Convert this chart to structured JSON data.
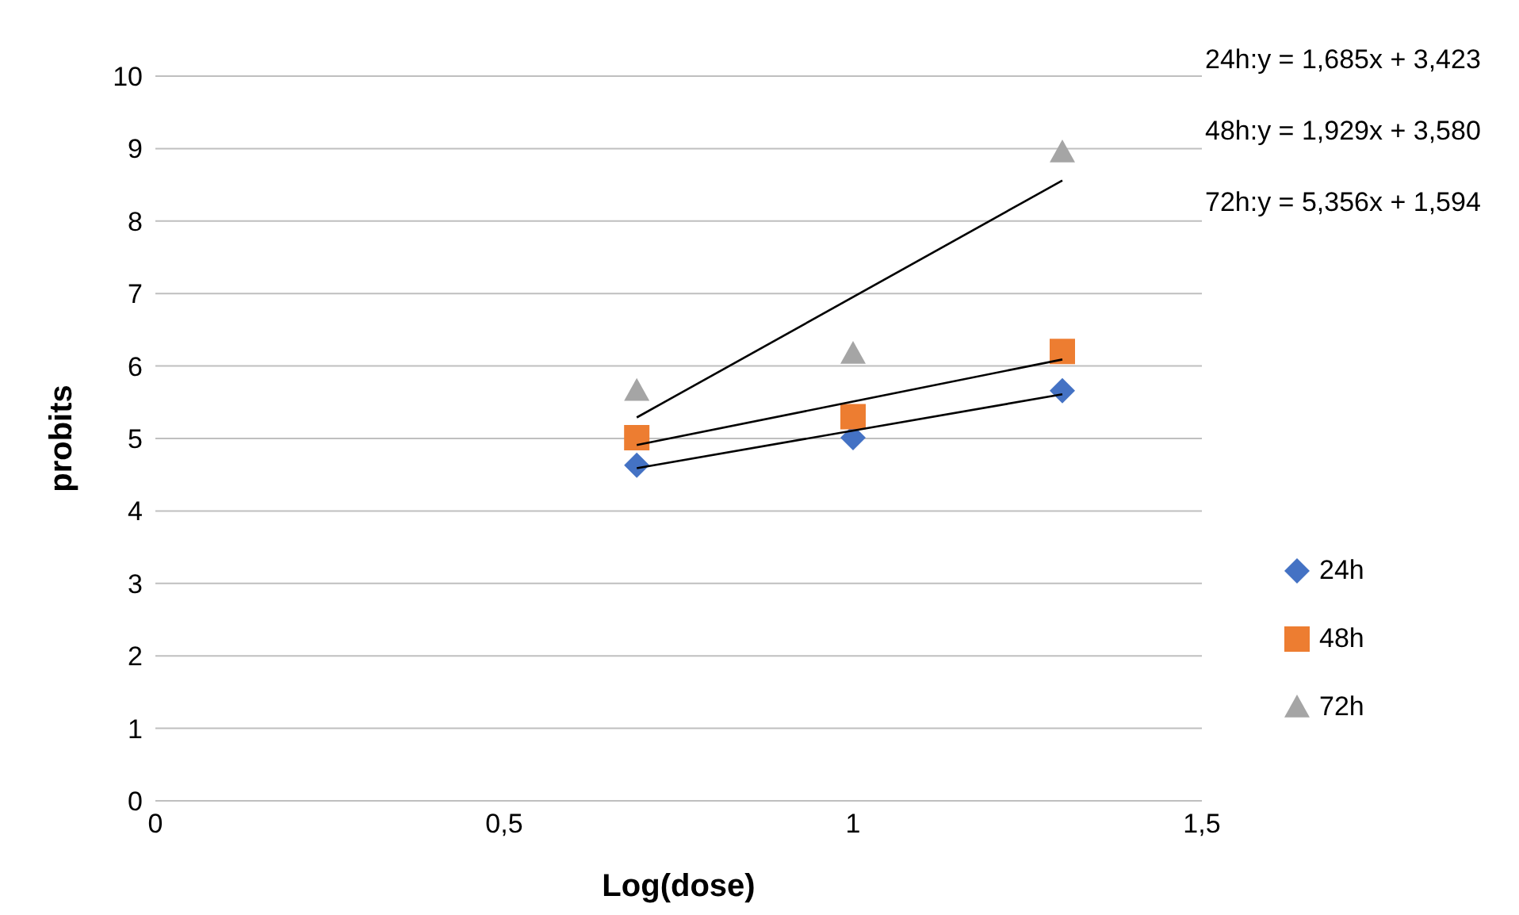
{
  "chart_data": {
    "type": "scatter",
    "xlabel": "Log(dose)",
    "ylabel": "probits",
    "xlim": [
      0,
      1.5
    ],
    "xticks": [
      0,
      {
        "value": 0.5,
        "label": "0,5"
      },
      1,
      {
        "value": 1.5,
        "label": "1,5"
      }
    ],
    "ylim": [
      0,
      10
    ],
    "yticks": [
      0,
      1,
      2,
      3,
      4,
      5,
      6,
      7,
      8,
      9,
      10
    ],
    "grid": "y",
    "legend": "right",
    "series": [
      {
        "name": "24h",
        "color": "#4472c4",
        "marker": "diamond",
        "x": [
          0.69,
          1,
          1.3
        ],
        "values": [
          4.63,
          5.01,
          5.66
        ]
      },
      {
        "name": "48h",
        "color": "#ed7d31",
        "marker": "square",
        "x": [
          0.69,
          1,
          1.3
        ],
        "values": [
          5.01,
          5.3,
          6.2
        ]
      },
      {
        "name": "72h",
        "color": "#a5a5a5",
        "marker": "triangle",
        "x": [
          0.69,
          1,
          1.3
        ],
        "values": [
          5.66,
          6.17,
          8.95
        ]
      },
      {
        "type": "line",
        "color": "#000000",
        "marker": "none",
        "x": [
          0.69,
          1.3
        ],
        "values": [
          4.59,
          5.61
        ]
      },
      {
        "type": "line",
        "color": "#000000",
        "marker": "none",
        "x": [
          0.69,
          1.3
        ],
        "values": [
          4.91,
          6.09
        ]
      },
      {
        "type": "line",
        "color": "#000000",
        "marker": "none",
        "x": [
          0.69,
          1.3
        ],
        "values": [
          5.29,
          8.56
        ]
      }
    ],
    "annotations": [
      "24h:y = 1,685x + 3,423",
      "48h:y = 1,929x + 3,580",
      "72h:y = 5,356x + 1,594"
    ]
  }
}
